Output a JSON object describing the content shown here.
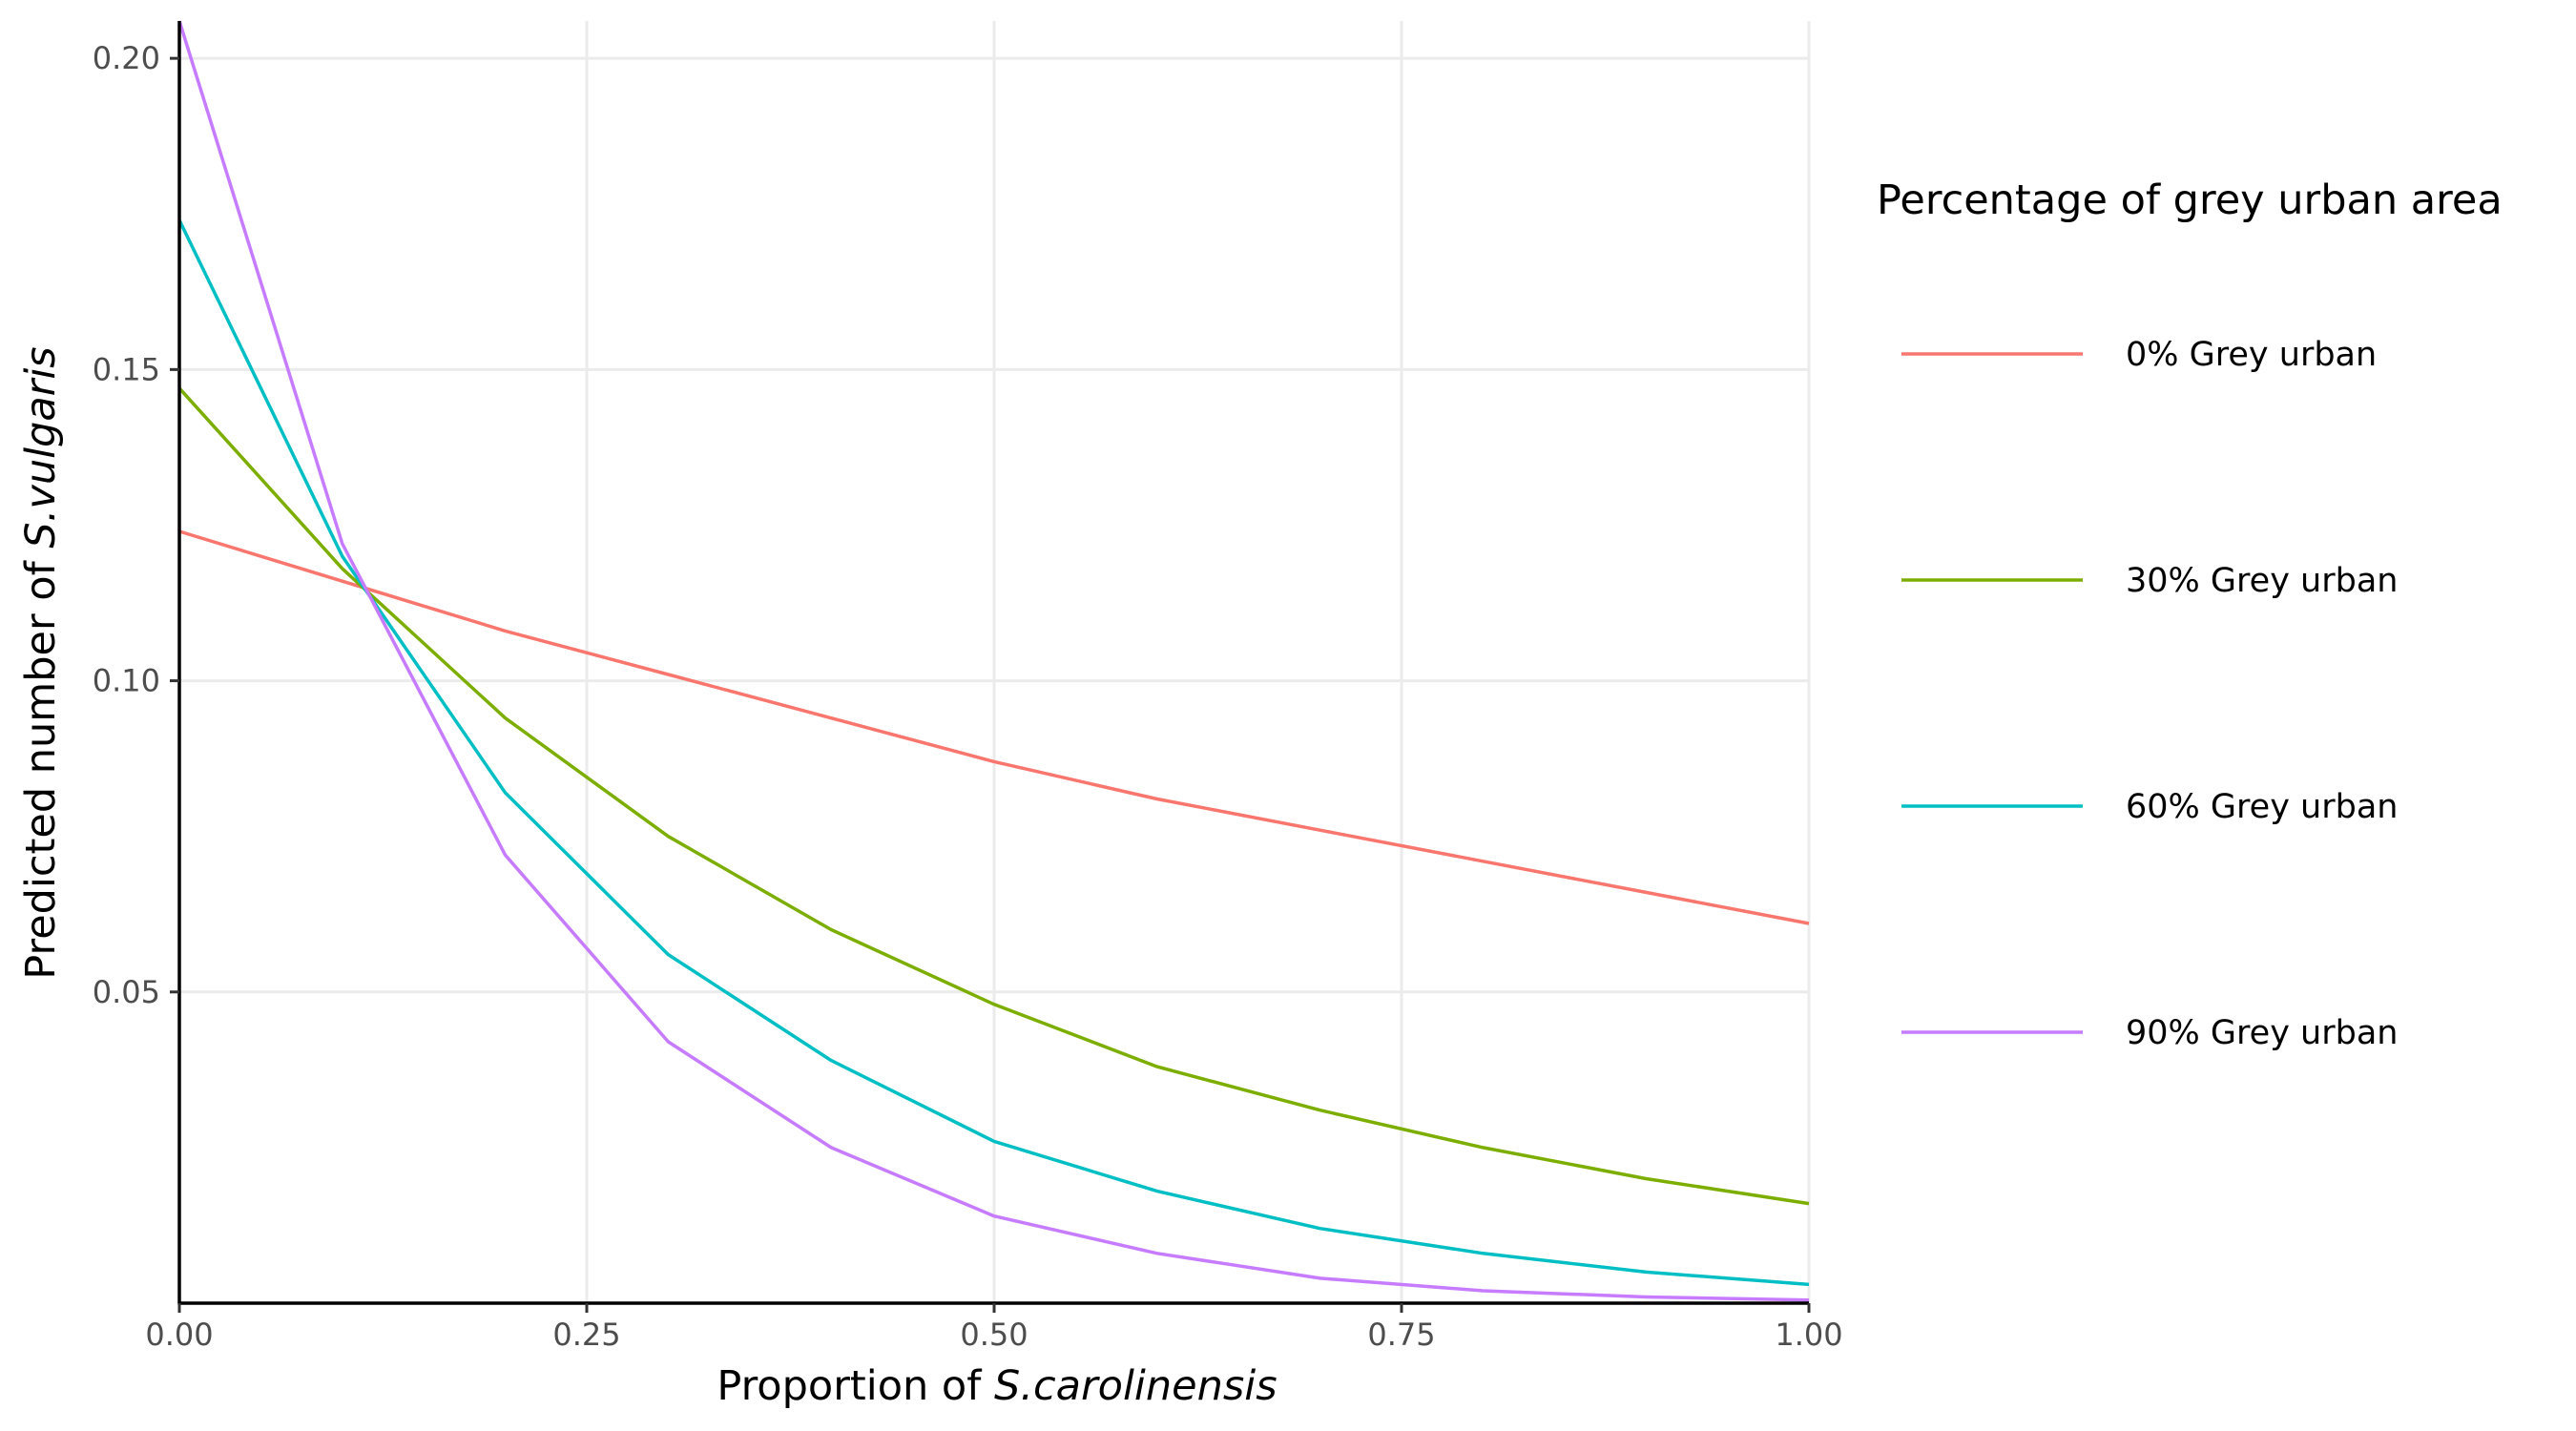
{
  "chart_data": {
    "type": "line",
    "xlabel": {
      "prefix": "Proportion of ",
      "italic": "S.carolinensis"
    },
    "ylabel": {
      "prefix": "Predicted number of ",
      "italic": "S.vulgaris"
    },
    "xlim": [
      0,
      1
    ],
    "ylim": [
      0.0,
      0.206
    ],
    "xticks": [
      0,
      0.25,
      0.5,
      0.75,
      1.0
    ],
    "xtick_labels": [
      "0.00",
      "0.25",
      "0.50",
      "0.75",
      "1.00"
    ],
    "yticks": [
      0.05,
      0.1,
      0.15,
      0.2
    ],
    "ytick_labels": [
      "0.05",
      "0.10",
      "0.15",
      "0.20"
    ],
    "grid": true,
    "legend": {
      "title": "Percentage of grey urban area",
      "position": "right"
    },
    "x": [
      0.0,
      0.1,
      0.2,
      0.3,
      0.4,
      0.5,
      0.6,
      0.7,
      0.8,
      0.9,
      1.0
    ],
    "series": [
      {
        "name": "0% Grey urban",
        "color": "#F8766D",
        "values": [
          0.124,
          0.116,
          0.108,
          0.101,
          0.094,
          0.087,
          0.081,
          0.076,
          0.071,
          0.066,
          0.061
        ]
      },
      {
        "name": "30% Grey urban",
        "color": "#7CAE00",
        "values": [
          0.147,
          0.118,
          0.094,
          0.075,
          0.06,
          0.048,
          0.038,
          0.031,
          0.025,
          0.02,
          0.016
        ]
      },
      {
        "name": "60% Grey urban",
        "color": "#00BFC4",
        "values": [
          0.174,
          0.12,
          0.082,
          0.056,
          0.039,
          0.026,
          0.018,
          0.012,
          0.008,
          0.005,
          0.003
        ]
      },
      {
        "name": "90% Grey urban",
        "color": "#C77CFF",
        "values": [
          0.206,
          0.122,
          0.072,
          0.042,
          0.025,
          0.014,
          0.008,
          0.004,
          0.002,
          0.001,
          0.0005
        ]
      }
    ]
  }
}
